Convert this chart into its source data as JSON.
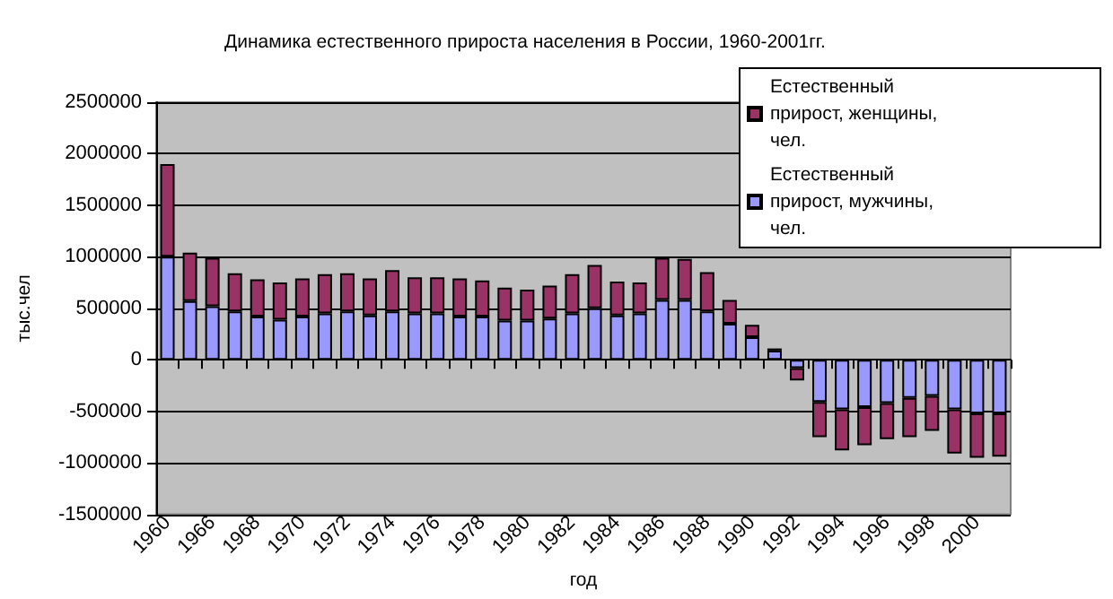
{
  "chart_data": {
    "type": "bar",
    "title": "Динамика естественного прироста населения в России, 1960-2001гг.",
    "xlabel": "год",
    "ylabel": "тыс.чел",
    "categories": [
      "1960",
      null,
      "1966",
      null,
      "1968",
      null,
      "1970",
      null,
      "1972",
      null,
      "1974",
      null,
      "1976",
      null,
      "1978",
      null,
      "1980",
      null,
      "1982",
      null,
      "1984",
      null,
      "1986",
      null,
      "1988",
      null,
      "1990",
      null,
      "1992",
      null,
      "1994",
      null,
      "1996",
      null,
      "1998",
      null,
      "2000",
      null
    ],
    "stacked": true,
    "series": [
      {
        "name": "Естественный прирост, мужчины, чел.",
        "color": "#9999ff",
        "values": [
          1000000,
          570000,
          520000,
          470000,
          420000,
          390000,
          420000,
          450000,
          470000,
          430000,
          470000,
          450000,
          450000,
          420000,
          420000,
          380000,
          380000,
          400000,
          450000,
          500000,
          430000,
          450000,
          580000,
          580000,
          470000,
          350000,
          220000,
          90000,
          -80000,
          -410000,
          -480000,
          -460000,
          -420000,
          -370000,
          -350000,
          -480000,
          -520000,
          -520000
        ]
      },
      {
        "name": "Естественный прирост, женщины, чел.",
        "color": "#993366",
        "values": [
          900000,
          470000,
          470000,
          370000,
          360000,
          360000,
          370000,
          380000,
          370000,
          360000,
          400000,
          350000,
          350000,
          370000,
          350000,
          320000,
          300000,
          320000,
          380000,
          420000,
          330000,
          300000,
          410000,
          400000,
          380000,
          230000,
          120000,
          20000,
          -120000,
          -340000,
          -400000,
          -370000,
          -350000,
          -380000,
          -340000,
          -430000,
          -430000,
          -420000
        ]
      }
    ],
    "ylim": [
      -1500000,
      2500000
    ],
    "yticks": [
      -1500000,
      -1000000,
      -500000,
      0,
      500000,
      1000000,
      1500000,
      2000000,
      2500000
    ],
    "grid": "y",
    "legend": "top right"
  }
}
